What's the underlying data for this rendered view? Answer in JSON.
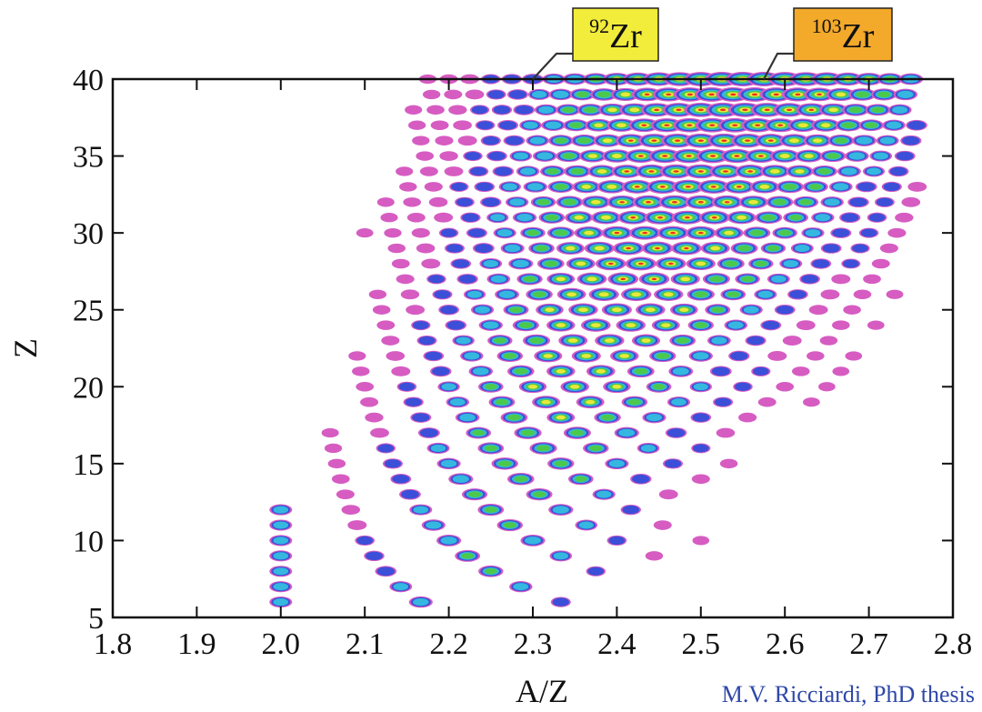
{
  "chart_data": {
    "type": "heatmap",
    "title": "",
    "xlabel": "A/Z",
    "ylabel": "Z",
    "xlim": [
      1.8,
      2.8
    ],
    "ylim": [
      5,
      40
    ],
    "xticks": [
      "1.8",
      "1.9",
      "2.0",
      "2.1",
      "2.2",
      "2.3",
      "2.4",
      "2.5",
      "2.6",
      "2.7",
      "2.8"
    ],
    "yticks": [
      "5",
      "10",
      "15",
      "20",
      "25",
      "30",
      "35",
      "40"
    ],
    "grid": false,
    "color_scale": [
      "#d65cc2",
      "#3b4fd8",
      "#35b7e0",
      "#4cc94c",
      "#e8e83a",
      "#f03020"
    ],
    "annotations": [
      {
        "mass": "92",
        "element": "Zr",
        "z": 40,
        "a_over_z": 2.3,
        "box_color": "#f2ec3a"
      },
      {
        "mass": "103",
        "element": "Zr",
        "z": 40,
        "a_over_z": 2.575,
        "box_color": "#f3a92a"
      }
    ],
    "credit": "M.V. Ricciardi, PhD thesis"
  }
}
